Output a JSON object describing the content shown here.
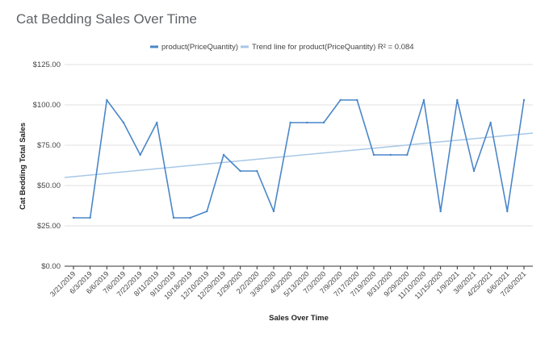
{
  "chart_data": {
    "type": "line",
    "title": "Cat Bedding Sales Over Time",
    "xlabel": "Sales Over Time",
    "ylabel": "Cat Bedding Total Sales",
    "ylim": [
      0,
      125
    ],
    "yticks": [
      "$0.00",
      "$25.00",
      "$50.00",
      "$75.00",
      "$100.00",
      "$125.00"
    ],
    "x_tick_labels": [
      "3/21/2019",
      "6/3/2019",
      "6/6/2019",
      "7/6/2019",
      "7/22/2019",
      "8/11/2019",
      "9/10/2019",
      "10/18/2019",
      "12/10/2019",
      "12/29/2019",
      "1/29/2020",
      "2/2/2020",
      "3/30/2020",
      "4/3/2020",
      "5/13/2020",
      "7/3/2020",
      "7/9/2020",
      "7/17/2020",
      "7/19/2020",
      "8/31/2020",
      "9/29/2020",
      "11/10/2020",
      "11/15/2020",
      "1/9/2021",
      "3/8/2021",
      "4/25/2021",
      "6/6/2021",
      "7/26/2021"
    ],
    "series": [
      {
        "name": "product(PriceQuantity)",
        "color": "#4a86c8",
        "values": [
          30,
          30,
          103,
          89,
          69,
          89,
          30,
          30,
          34,
          69,
          59,
          59,
          34,
          89,
          89,
          89,
          103,
          103,
          69,
          69,
          69,
          103,
          34,
          103,
          59,
          89,
          34,
          103
        ]
      }
    ],
    "trendline": {
      "name": "Trend line for product(PriceQuantity) R² = 0.084",
      "color": "#a7c7e7",
      "start": 55,
      "end": 82.5
    },
    "legend_position": "top",
    "grid": true
  }
}
